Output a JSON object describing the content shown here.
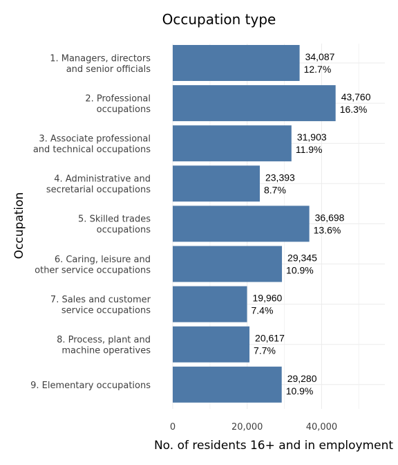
{
  "chart_data": {
    "type": "bar",
    "orientation": "horizontal",
    "title": "Occupation type",
    "xlabel": "No. of residents 16+ and in employment",
    "ylabel": "Occupation",
    "xlim": [
      0,
      57000
    ],
    "x_ticks": [
      0,
      20000,
      40000
    ],
    "x_tick_labels": [
      "0",
      "20,000",
      "40,000"
    ],
    "grid": true,
    "bar_color": "#4e79a7",
    "categories": [
      [
        "1. Managers, directors",
        "and senior officials"
      ],
      [
        "2. Professional",
        "occupations"
      ],
      [
        "3. Associate professional",
        "and technical occupations"
      ],
      [
        "4. Administrative and",
        "secretarial occupations"
      ],
      [
        "5. Skilled trades",
        "occupations"
      ],
      [
        "6. Caring, leisure and",
        "other service occupations"
      ],
      [
        "7. Sales and customer",
        "service occupations"
      ],
      [
        "8. Process, plant and",
        "machine operatives"
      ],
      [
        "9. Elementary occupations"
      ]
    ],
    "values": [
      34087,
      43760,
      31903,
      23393,
      36698,
      29345,
      19960,
      20617,
      29280
    ],
    "value_labels": [
      "34,087",
      "43,760",
      "31,903",
      "23,393",
      "36,698",
      "29,345",
      "19,960",
      "20,617",
      "29,280"
    ],
    "percent_labels": [
      "12.7%",
      "16.3%",
      "11.9%",
      "8.7%",
      "13.6%",
      "10.9%",
      "7.4%",
      "7.7%",
      "10.9%"
    ]
  }
}
